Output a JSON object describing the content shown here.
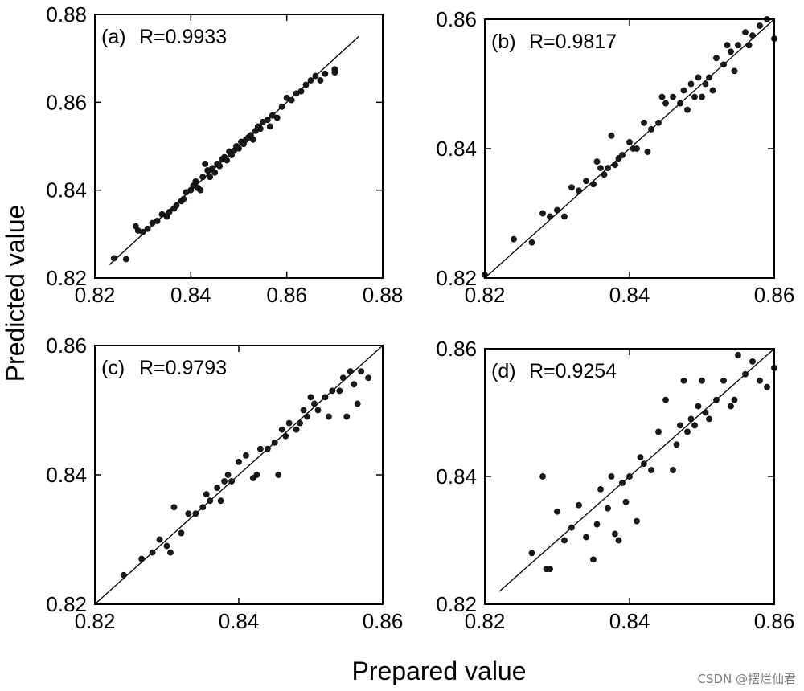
{
  "figure": {
    "xlabel": "Prepared value",
    "ylabel": "Predicted value",
    "watermark": "CSDN @摆烂仙君"
  },
  "chart_data": [
    {
      "type": "scatter",
      "panel": "(a)",
      "annotation": "R=0.9933",
      "xlim": [
        0.82,
        0.88
      ],
      "ylim": [
        0.82,
        0.88
      ],
      "xticks": [
        "0.82",
        "0.84",
        "0.86",
        "0.88"
      ],
      "yticks": [
        "0.82",
        "0.84",
        "0.86",
        "0.88"
      ],
      "fit_line": [
        [
          0.823,
          0.823
        ],
        [
          0.875,
          0.875
        ]
      ],
      "x": [
        0.824,
        0.8265,
        0.8285,
        0.829,
        0.83,
        0.831,
        0.832,
        0.833,
        0.834,
        0.835,
        0.8355,
        0.8365,
        0.837,
        0.838,
        0.8385,
        0.839,
        0.84,
        0.8405,
        0.841,
        0.8415,
        0.842,
        0.8425,
        0.843,
        0.8435,
        0.844,
        0.8445,
        0.845,
        0.8455,
        0.846,
        0.8465,
        0.847,
        0.8475,
        0.848,
        0.8485,
        0.849,
        0.8495,
        0.85,
        0.8505,
        0.851,
        0.8515,
        0.852,
        0.8525,
        0.853,
        0.8535,
        0.854,
        0.8545,
        0.855,
        0.856,
        0.8565,
        0.857,
        0.858,
        0.859,
        0.86,
        0.861,
        0.862,
        0.863,
        0.864,
        0.865,
        0.866,
        0.867,
        0.868,
        0.87,
        0.87
      ],
      "y": [
        0.8245,
        0.8243,
        0.8318,
        0.8308,
        0.8305,
        0.8312,
        0.8325,
        0.833,
        0.8345,
        0.834,
        0.835,
        0.8358,
        0.8365,
        0.8375,
        0.838,
        0.8395,
        0.84,
        0.841,
        0.842,
        0.8405,
        0.84,
        0.843,
        0.846,
        0.8445,
        0.843,
        0.845,
        0.844,
        0.846,
        0.8455,
        0.847,
        0.8475,
        0.8468,
        0.8488,
        0.848,
        0.849,
        0.85,
        0.8495,
        0.851,
        0.8505,
        0.8515,
        0.852,
        0.8525,
        0.8515,
        0.8535,
        0.8545,
        0.854,
        0.8555,
        0.856,
        0.8545,
        0.857,
        0.8565,
        0.859,
        0.861,
        0.8605,
        0.862,
        0.8625,
        0.864,
        0.865,
        0.866,
        0.865,
        0.8665,
        0.8675,
        0.8668
      ]
    },
    {
      "type": "scatter",
      "panel": "(b)",
      "annotation": "R=0.9817",
      "xlim": [
        0.82,
        0.86
      ],
      "ylim": [
        0.82,
        0.86
      ],
      "xticks": [
        "0.82",
        "0.84",
        "0.86"
      ],
      "yticks": [
        "0.82",
        "0.84",
        "0.86"
      ],
      "fit_line": [
        [
          0.82,
          0.82
        ],
        [
          0.86,
          0.86
        ]
      ],
      "x": [
        0.82,
        0.824,
        0.8265,
        0.828,
        0.829,
        0.83,
        0.831,
        0.832,
        0.833,
        0.834,
        0.835,
        0.8355,
        0.836,
        0.8365,
        0.837,
        0.8375,
        0.838,
        0.8385,
        0.839,
        0.84,
        0.8405,
        0.841,
        0.842,
        0.8425,
        0.843,
        0.844,
        0.8445,
        0.845,
        0.846,
        0.847,
        0.8475,
        0.848,
        0.8485,
        0.849,
        0.8495,
        0.85,
        0.8505,
        0.851,
        0.8515,
        0.852,
        0.853,
        0.8535,
        0.854,
        0.8545,
        0.855,
        0.856,
        0.8565,
        0.857,
        0.858,
        0.859,
        0.86
      ],
      "y": [
        0.8205,
        0.826,
        0.8255,
        0.83,
        0.8295,
        0.8305,
        0.8295,
        0.834,
        0.8335,
        0.835,
        0.8345,
        0.838,
        0.837,
        0.836,
        0.837,
        0.842,
        0.8375,
        0.8385,
        0.839,
        0.841,
        0.84,
        0.84,
        0.844,
        0.8395,
        0.843,
        0.844,
        0.848,
        0.847,
        0.848,
        0.847,
        0.849,
        0.846,
        0.85,
        0.848,
        0.851,
        0.848,
        0.85,
        0.851,
        0.849,
        0.854,
        0.853,
        0.856,
        0.855,
        0.852,
        0.856,
        0.858,
        0.856,
        0.8575,
        0.859,
        0.86,
        0.857
      ]
    },
    {
      "type": "scatter",
      "panel": "(c)",
      "annotation": "R=0.9793",
      "xlim": [
        0.82,
        0.86
      ],
      "ylim": [
        0.82,
        0.86
      ],
      "xticks": [
        "0.82",
        "0.84",
        "0.86"
      ],
      "yticks": [
        "0.82",
        "0.84",
        "0.86"
      ],
      "fit_line": [
        [
          0.82,
          0.82
        ],
        [
          0.86,
          0.86
        ]
      ],
      "x": [
        0.824,
        0.8265,
        0.828,
        0.829,
        0.83,
        0.8305,
        0.831,
        0.832,
        0.833,
        0.834,
        0.835,
        0.8355,
        0.836,
        0.837,
        0.8375,
        0.838,
        0.8385,
        0.839,
        0.84,
        0.841,
        0.842,
        0.8425,
        0.843,
        0.844,
        0.845,
        0.8455,
        0.846,
        0.8465,
        0.847,
        0.848,
        0.8485,
        0.849,
        0.8495,
        0.85,
        0.8505,
        0.851,
        0.852,
        0.8525,
        0.853,
        0.854,
        0.8545,
        0.855,
        0.8555,
        0.856,
        0.8565,
        0.857,
        0.858
      ],
      "y": [
        0.8245,
        0.827,
        0.828,
        0.83,
        0.829,
        0.828,
        0.835,
        0.831,
        0.834,
        0.834,
        0.835,
        0.837,
        0.836,
        0.838,
        0.836,
        0.839,
        0.84,
        0.839,
        0.842,
        0.843,
        0.8395,
        0.84,
        0.844,
        0.844,
        0.845,
        0.84,
        0.847,
        0.846,
        0.848,
        0.847,
        0.848,
        0.85,
        0.849,
        0.852,
        0.851,
        0.85,
        0.852,
        0.849,
        0.853,
        0.853,
        0.855,
        0.849,
        0.856,
        0.854,
        0.851,
        0.856,
        0.855
      ]
    },
    {
      "type": "scatter",
      "panel": "(d)",
      "annotation": "R=0.9254",
      "xlim": [
        0.82,
        0.86
      ],
      "ylim": [
        0.82,
        0.86
      ],
      "xticks": [
        "0.82",
        "0.84",
        "0.86"
      ],
      "yticks": [
        "0.82",
        "0.84",
        "0.86"
      ],
      "fit_line": [
        [
          0.822,
          0.822
        ],
        [
          0.86,
          0.86
        ]
      ],
      "x": [
        0.8265,
        0.828,
        0.8285,
        0.829,
        0.83,
        0.831,
        0.832,
        0.833,
        0.834,
        0.835,
        0.8355,
        0.836,
        0.837,
        0.8375,
        0.838,
        0.8385,
        0.839,
        0.8395,
        0.84,
        0.841,
        0.8415,
        0.842,
        0.843,
        0.844,
        0.845,
        0.846,
        0.8465,
        0.847,
        0.8475,
        0.848,
        0.8485,
        0.849,
        0.8495,
        0.85,
        0.8505,
        0.851,
        0.852,
        0.853,
        0.854,
        0.8545,
        0.855,
        0.856,
        0.857,
        0.858,
        0.859,
        0.86
      ],
      "y": [
        0.828,
        0.84,
        0.8255,
        0.8255,
        0.8345,
        0.83,
        0.832,
        0.8355,
        0.8305,
        0.827,
        0.8325,
        0.838,
        0.835,
        0.84,
        0.831,
        0.83,
        0.839,
        0.836,
        0.84,
        0.833,
        0.843,
        0.842,
        0.841,
        0.847,
        0.852,
        0.841,
        0.845,
        0.848,
        0.855,
        0.847,
        0.849,
        0.848,
        0.851,
        0.855,
        0.85,
        0.849,
        0.852,
        0.855,
        0.851,
        0.852,
        0.859,
        0.856,
        0.858,
        0.855,
        0.854,
        0.857
      ]
    }
  ]
}
